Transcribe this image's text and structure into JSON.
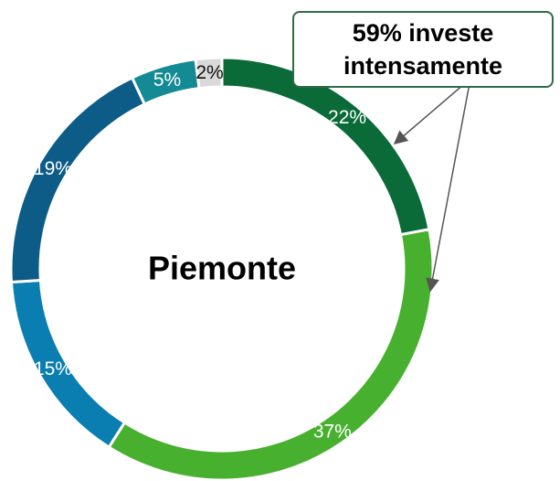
{
  "chart_data": {
    "type": "donut",
    "center_label": "Piemonte",
    "annotation": "59% investe intensamente",
    "categories": [
      null,
      null,
      null,
      null,
      null,
      null
    ],
    "values": [
      22,
      37,
      15,
      19,
      5,
      2
    ],
    "value_labels": [
      "22%",
      "37%",
      "15%",
      "19%",
      "5%",
      "2%"
    ],
    "colors": [
      "#0a6b38",
      "#48b02f",
      "#0a7db1",
      "#0c5c87",
      "#148a95",
      "#d9d9d9"
    ]
  }
}
